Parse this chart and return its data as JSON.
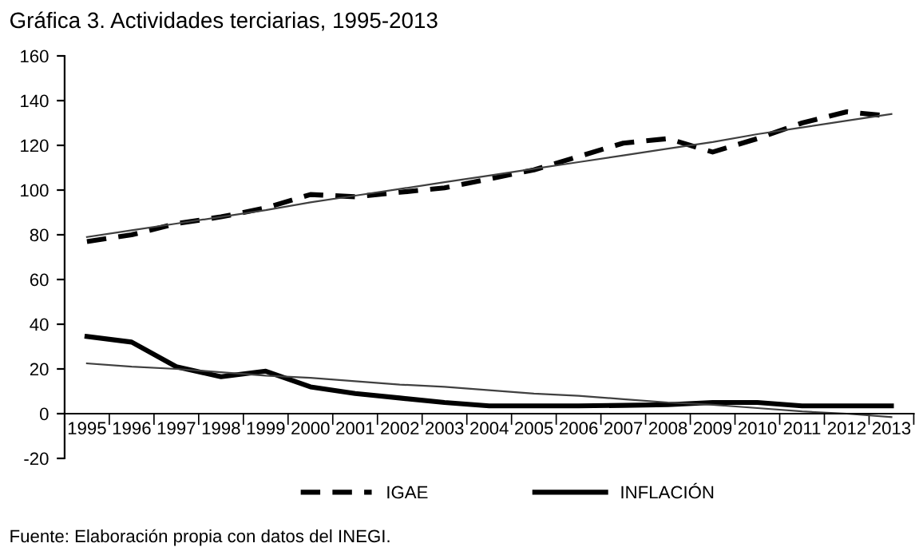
{
  "chart_data": {
    "type": "line",
    "title": "Gráfica 3. Actividades terciarias, 1995-2013",
    "categories": [
      "1995",
      "1996",
      "1997",
      "1998",
      "1999",
      "2000",
      "2001",
      "2002",
      "2003",
      "2004",
      "2005",
      "2006",
      "2007",
      "2008",
      "2009",
      "2010",
      "2011",
      "2012",
      "2013"
    ],
    "series": [
      {
        "name": "IGAE",
        "color": "#000000",
        "line_style": "dashed",
        "values": [
          77,
          80,
          85,
          88,
          92,
          98,
          97,
          99,
          101,
          105,
          109,
          115,
          121,
          123,
          117,
          123,
          130,
          135,
          133
        ]
      },
      {
        "name": "INFLACIÓN",
        "color": "#000000",
        "line_style": "solid",
        "values": [
          34.5,
          32,
          21,
          16.5,
          19,
          12,
          9,
          7,
          5,
          3.5,
          3.5,
          3.5,
          3.7,
          4,
          5,
          5,
          3.5,
          3.5,
          3.5
        ]
      },
      {
        "type": "line",
        "color": "#404040",
        "line_style": "solid",
        "values": [
          79,
          82,
          85,
          88,
          91,
          94.5,
          97.5,
          100.5,
          103.5,
          106.5,
          109.5,
          112.5,
          115.5,
          118.5,
          121.5,
          125,
          128,
          131,
          134
        ]
      },
      {
        "type": "line",
        "color": "#404040",
        "line_style": "solid",
        "values": [
          22.5,
          21,
          20,
          18.5,
          17,
          16,
          14.5,
          13,
          12,
          10.5,
          9,
          8,
          6.5,
          5,
          4,
          2.5,
          1,
          0,
          -1.5
        ]
      }
    ],
    "ylim": [
      -20,
      160
    ],
    "yticks": [
      -20,
      0,
      20,
      40,
      60,
      80,
      100,
      120,
      140,
      160
    ],
    "grid": false,
    "legend": "bottom",
    "marker": "none",
    "annotations": [
      "Fuente: Elaboración propia con datos del INEGI."
    ]
  }
}
